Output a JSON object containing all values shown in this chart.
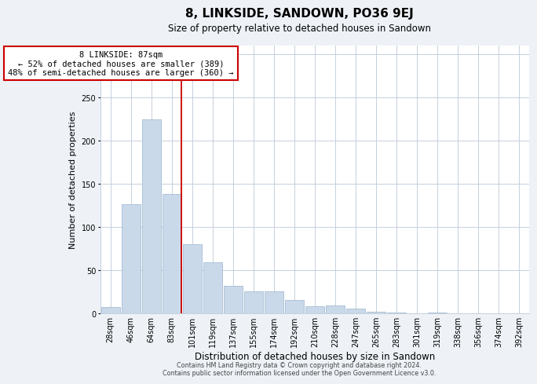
{
  "title": "8, LINKSIDE, SANDOWN, PO36 9EJ",
  "subtitle": "Size of property relative to detached houses in Sandown",
  "xlabel": "Distribution of detached houses by size in Sandown",
  "ylabel": "Number of detached properties",
  "bar_labels": [
    "28sqm",
    "46sqm",
    "64sqm",
    "83sqm",
    "101sqm",
    "119sqm",
    "137sqm",
    "155sqm",
    "174sqm",
    "192sqm",
    "210sqm",
    "228sqm",
    "247sqm",
    "265sqm",
    "283sqm",
    "301sqm",
    "319sqm",
    "338sqm",
    "356sqm",
    "374sqm",
    "392sqm"
  ],
  "bar_values": [
    7,
    126,
    225,
    138,
    80,
    59,
    32,
    25,
    25,
    15,
    8,
    9,
    5,
    2,
    1,
    0,
    1,
    0,
    0,
    0,
    0
  ],
  "bar_color": "#c9d9ea",
  "bar_edge_color": "#9ab4cc",
  "vline_x_idx": 3,
  "vline_color": "#cc0000",
  "annotation_text": "8 LINKSIDE: 87sqm\n← 52% of detached houses are smaller (389)\n48% of semi-detached houses are larger (360) →",
  "annotation_box_color": "#ffffff",
  "annotation_box_edge": "#cc0000",
  "ylim": [
    0,
    310
  ],
  "yticks": [
    0,
    50,
    100,
    150,
    200,
    250,
    300
  ],
  "footer_line1": "Contains HM Land Registry data © Crown copyright and database right 2024.",
  "footer_line2": "Contains public sector information licensed under the Open Government Licence v3.0.",
  "bg_color": "#eef2f7",
  "plot_bg_color": "#ffffff",
  "grid_color": "#c5d0dc",
  "title_fontsize": 11,
  "subtitle_fontsize": 8.5,
  "ylabel_fontsize": 8,
  "xlabel_fontsize": 8.5,
  "tick_fontsize": 7,
  "footer_fontsize": 5.8,
  "annotation_fontsize": 7.5
}
